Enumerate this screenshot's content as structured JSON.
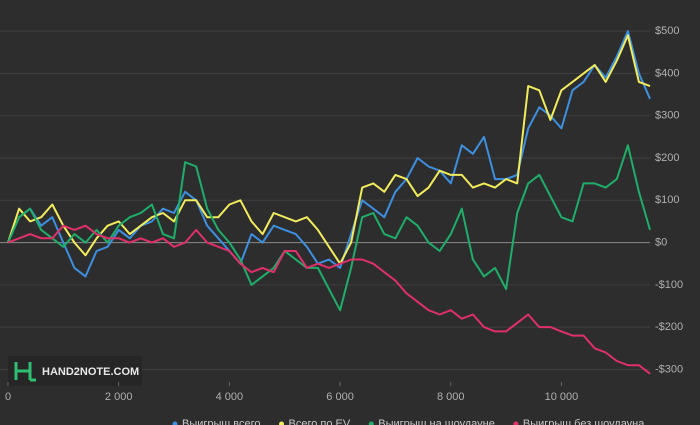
{
  "chart_data": {
    "type": "line",
    "watermark": "HAND2NOTE.COM",
    "x": [
      0,
      200,
      400,
      600,
      800,
      1000,
      1200,
      1400,
      1600,
      1800,
      2000,
      2200,
      2400,
      2600,
      2800,
      3000,
      3200,
      3400,
      3600,
      3800,
      4000,
      4200,
      4400,
      4600,
      4800,
      5000,
      5200,
      5400,
      5600,
      5800,
      6000,
      6200,
      6400,
      6600,
      6800,
      7000,
      7200,
      7400,
      7600,
      7800,
      8000,
      8200,
      8400,
      8600,
      8800,
      9000,
      9200,
      9400,
      9600,
      9800,
      10000,
      10200,
      10400,
      10600,
      10800,
      11000,
      11200,
      11400,
      11600
    ],
    "series": [
      {
        "name": "Выигрыш всего",
        "color": "#3d8fe0",
        "values": [
          0,
          60,
          80,
          40,
          60,
          0,
          -60,
          -80,
          -20,
          -10,
          30,
          10,
          40,
          50,
          80,
          70,
          120,
          100,
          40,
          10,
          -20,
          -50,
          20,
          0,
          40,
          30,
          20,
          -10,
          -50,
          -40,
          -60,
          20,
          100,
          80,
          60,
          120,
          150,
          200,
          180,
          170,
          140,
          230,
          210,
          250,
          150,
          150,
          160,
          270,
          320,
          300,
          270,
          360,
          380,
          420,
          390,
          440,
          500,
          400,
          340
        ]
      },
      {
        "name": "Всего по EV",
        "color": "#f2ec5c",
        "values": [
          0,
          80,
          50,
          60,
          90,
          40,
          0,
          -30,
          10,
          40,
          50,
          20,
          40,
          60,
          70,
          50,
          100,
          100,
          60,
          60,
          90,
          100,
          50,
          20,
          70,
          60,
          50,
          60,
          30,
          -10,
          -50,
          0,
          130,
          140,
          120,
          160,
          150,
          110,
          130,
          170,
          160,
          160,
          130,
          140,
          130,
          150,
          140,
          370,
          360,
          290,
          360,
          380,
          400,
          420,
          380,
          430,
          490,
          380,
          370
        ]
      },
      {
        "name": "Выигрыш на шоудауне",
        "color": "#1fae6a",
        "values": [
          0,
          60,
          80,
          30,
          10,
          -10,
          20,
          0,
          30,
          0,
          40,
          60,
          70,
          90,
          20,
          10,
          190,
          180,
          80,
          30,
          0,
          -40,
          -100,
          -80,
          -60,
          -20,
          -40,
          -60,
          -60,
          -110,
          -160,
          -60,
          60,
          70,
          20,
          10,
          60,
          40,
          0,
          -20,
          20,
          80,
          -40,
          -80,
          -60,
          -110,
          70,
          140,
          160,
          110,
          60,
          50,
          140,
          140,
          130,
          150,
          230,
          120,
          30
        ]
      },
      {
        "name": "Выигрыш без шоудауна",
        "color": "#e0306a",
        "values": [
          0,
          10,
          20,
          10,
          10,
          40,
          30,
          40,
          20,
          10,
          10,
          0,
          10,
          0,
          10,
          -10,
          0,
          30,
          0,
          -10,
          -20,
          -50,
          -70,
          -60,
          -70,
          -20,
          -20,
          -60,
          -50,
          -60,
          -50,
          -40,
          -40,
          -50,
          -70,
          -90,
          -120,
          -140,
          -160,
          -170,
          -160,
          -180,
          -170,
          -200,
          -210,
          -210,
          -190,
          -170,
          -200,
          -200,
          -210,
          -220,
          -220,
          -250,
          -260,
          -280,
          -290,
          -290,
          -310
        ]
      }
    ],
    "xlim": [
      0,
      11600
    ],
    "ylim": [
      -325,
      550
    ],
    "xticks": [
      0,
      {
        "value": 2000,
        "label": "2 000"
      },
      {
        "value": 4000,
        "label": "4 000"
      },
      {
        "value": 6000,
        "label": "6 000"
      },
      {
        "value": 8000,
        "label": "8 000"
      },
      {
        "value": 10000,
        "label": "10 000"
      }
    ],
    "yticks": [
      {
        "value": -300,
        "label": "-$300"
      },
      {
        "value": -200,
        "label": "-$200"
      },
      {
        "value": -100,
        "label": "-$100"
      },
      {
        "value": 0,
        "label": "$0"
      },
      {
        "value": 100,
        "label": "$100"
      },
      {
        "value": 200,
        "label": "$200"
      },
      {
        "value": 300,
        "label": "$300"
      },
      {
        "value": 400,
        "label": "$400"
      },
      {
        "value": 500,
        "label": "$500"
      }
    ],
    "grid": true
  }
}
